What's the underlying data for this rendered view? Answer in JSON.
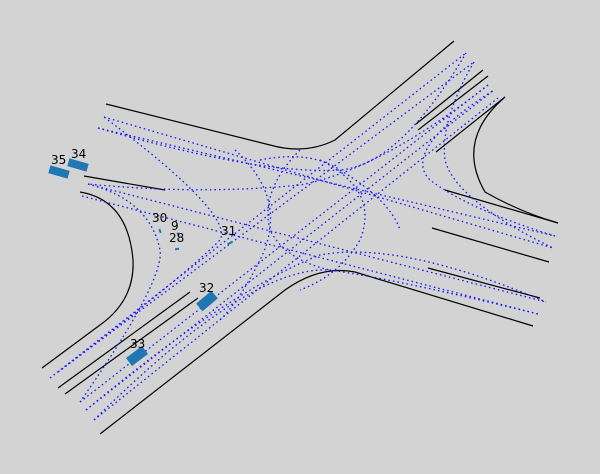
{
  "colors": {
    "background": "#d3d3d3",
    "road_edge": "#000000",
    "lane_centerline": "#1a1aff",
    "vehicle": "#1f77b4",
    "label": "#000000"
  },
  "vehicles": [
    {
      "id": "35",
      "label": "35"
    },
    {
      "id": "34",
      "label": "34"
    },
    {
      "id": "30",
      "label": "30"
    },
    {
      "id": "9",
      "label": "9"
    },
    {
      "id": "28",
      "label": "28"
    },
    {
      "id": "31",
      "label": "31"
    },
    {
      "id": "32",
      "label": "32"
    },
    {
      "id": "33",
      "label": "33"
    }
  ]
}
